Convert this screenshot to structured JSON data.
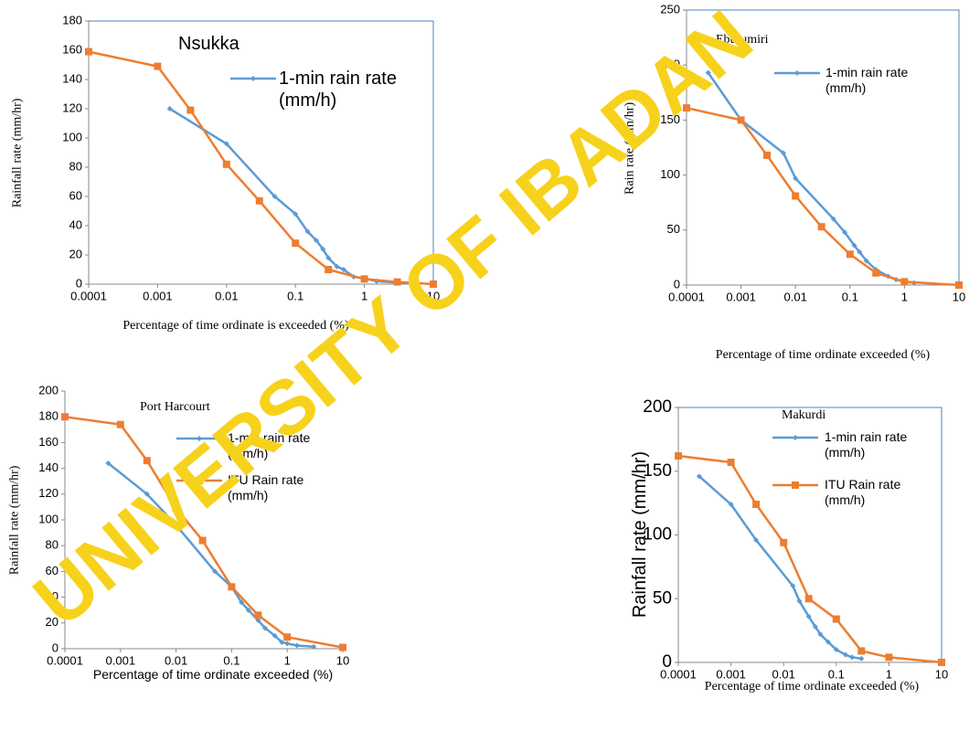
{
  "watermark": "UNIVERSITY OF IBADAN",
  "chart_data": [
    {
      "type": "line",
      "title": "Nsukka",
      "x_label": "Percentage of time ordinate is exceeded (%)",
      "y_label": "Rainfall rate (mm/hr)",
      "xscale": "log",
      "xlim": [
        0.0001,
        10
      ],
      "xticks": [
        0.0001,
        0.001,
        0.01,
        0.1,
        1,
        10
      ],
      "ylim": [
        0,
        180
      ],
      "yticks": [
        0,
        20,
        40,
        60,
        80,
        100,
        120,
        140,
        160,
        180
      ],
      "series": [
        {
          "name": "1-min rain rate (mm/h)",
          "color": "#5b9bd5",
          "marker": "diamond",
          "x": [
            0.0015,
            0.01,
            0.05,
            0.1,
            0.15,
            0.2,
            0.25,
            0.3,
            0.4,
            0.5,
            0.7,
            1,
            1.5,
            3,
            5
          ],
          "values": [
            120,
            96,
            60,
            48,
            36,
            30,
            24,
            18,
            12,
            10,
            5,
            4,
            2,
            1,
            0.5
          ]
        },
        {
          "color": "#ed7d31",
          "marker": "square",
          "x": [
            0.0001,
            0.001,
            0.003,
            0.01,
            0.03,
            0.1,
            0.3,
            1,
            3,
            10
          ],
          "values": [
            159,
            149,
            119,
            82,
            57,
            28,
            10,
            3.5,
            1.5,
            0
          ]
        }
      ]
    },
    {
      "type": "line",
      "title": "Eburumiri",
      "x_label": "Percentage of time ordinate exceeded (%)",
      "y_label": "Rain rate (mm/hr)",
      "xscale": "log",
      "xlim": [
        0.0001,
        10
      ],
      "xticks": [
        0.0001,
        0.001,
        0.01,
        0.1,
        1,
        10
      ],
      "ylim": [
        0,
        250
      ],
      "yticks": [
        0,
        50,
        100,
        150,
        200,
        250
      ],
      "series": [
        {
          "name": "1-min rain rate (mm/h)",
          "color": "#5b9bd5",
          "marker": "diamond",
          "x": [
            0.00025,
            0.001,
            0.006,
            0.01,
            0.05,
            0.08,
            0.12,
            0.15,
            0.2,
            0.3,
            0.5,
            0.7,
            1,
            1.5
          ],
          "values": [
            193,
            150,
            120,
            97,
            60,
            48,
            36,
            30,
            22,
            14,
            8,
            5,
            3,
            2
          ]
        },
        {
          "color": "#ed7d31",
          "marker": "square",
          "x": [
            0.0001,
            0.001,
            0.003,
            0.01,
            0.03,
            0.1,
            0.3,
            1,
            10
          ],
          "values": [
            161,
            150,
            118,
            81,
            53,
            28,
            11,
            3,
            0
          ]
        }
      ]
    },
    {
      "type": "line",
      "title": "Port Harcourt",
      "x_label": "Percentage of time ordinate exceeded (%)",
      "y_label": "Rainfall rate (mm/hr)",
      "xscale": "log",
      "xlim": [
        0.0001,
        10
      ],
      "xticks": [
        0.0001,
        0.001,
        0.01,
        0.1,
        1,
        10
      ],
      "ylim": [
        0,
        200
      ],
      "yticks": [
        0,
        20,
        40,
        60,
        80,
        100,
        120,
        140,
        160,
        180,
        200
      ],
      "series": [
        {
          "name": "1-min rain rate (mm/h)",
          "color": "#5b9bd5",
          "marker": "diamond",
          "x": [
            0.0006,
            0.003,
            0.01,
            0.05,
            0.1,
            0.15,
            0.2,
            0.3,
            0.4,
            0.6,
            0.8,
            1,
            1.5,
            3
          ],
          "values": [
            144,
            120,
            96,
            60,
            48,
            36,
            30,
            22,
            16,
            10,
            5,
            4,
            2.5,
            1.5
          ]
        },
        {
          "name": "ITU Rain rate (mm/h)",
          "color": "#ed7d31",
          "marker": "square",
          "x": [
            0.0001,
            0.001,
            0.003,
            0.01,
            0.03,
            0.1,
            0.3,
            1,
            10
          ],
          "values": [
            180,
            174,
            146,
            109,
            84,
            48,
            26,
            9,
            1
          ]
        }
      ]
    },
    {
      "type": "line",
      "title": "Makurdi",
      "x_label": "Percentage of time ordinate exceeded (%)",
      "y_label": "Rainfall rate (mm/hr)",
      "xscale": "log",
      "xlim": [
        0.0001,
        10
      ],
      "xticks": [
        0.0001,
        0.001,
        0.01,
        0.1,
        1,
        10
      ],
      "ylim": [
        0,
        200
      ],
      "yticks": [
        0,
        50,
        100,
        150,
        200
      ],
      "series": [
        {
          "name": "1-min rain rate (mm/h)",
          "color": "#5b9bd5",
          "marker": "diamond",
          "x": [
            0.00025,
            0.001,
            0.003,
            0.015,
            0.02,
            0.03,
            0.04,
            0.05,
            0.07,
            0.1,
            0.15,
            0.2,
            0.3
          ],
          "values": [
            146,
            124,
            96,
            60,
            48,
            36,
            28,
            22,
            16,
            10,
            6,
            4,
            3
          ]
        },
        {
          "name": "ITU Rain rate (mm/h)",
          "color": "#ed7d31",
          "marker": "square",
          "x": [
            0.0001,
            0.001,
            0.003,
            0.01,
            0.03,
            0.1,
            0.3,
            1,
            10
          ],
          "values": [
            162,
            157,
            124,
            94,
            50,
            34,
            9,
            4,
            0
          ]
        }
      ]
    }
  ]
}
